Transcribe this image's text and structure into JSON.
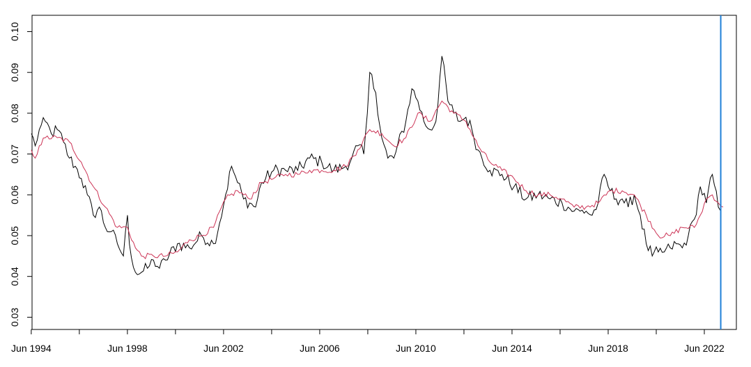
{
  "chart_data": {
    "type": "line",
    "title": "",
    "xlabel": "",
    "ylabel": "",
    "xlim": [
      1994.45,
      2023.75
    ],
    "ylim": [
      0.027,
      0.104
    ],
    "grid": false,
    "x_tick_labels": [
      "Jun 1994",
      "Jun 1998",
      "Jun 2002",
      "Jun 2006",
      "Jun 2010",
      "Jun 2014",
      "Jun 2018",
      "Jun 2022"
    ],
    "x_tick_positions": [
      1994.417,
      1996.417,
      1998.417,
      2000.417,
      2002.417,
      2004.417,
      2006.417,
      2008.417,
      2010.417,
      2012.417,
      2014.417,
      2016.417,
      2018.417,
      2020.417,
      2022.417
    ],
    "x_labeled_ticks": [
      1994.417,
      1998.417,
      2002.417,
      2006.417,
      2010.417,
      2014.417,
      2018.417,
      2022.417
    ],
    "y_ticks": [
      0.03,
      0.04,
      0.05,
      0.06,
      0.07,
      0.08,
      0.09,
      0.1
    ],
    "y_tick_labels": [
      "0.03",
      "0.04",
      "0.05",
      "0.06",
      "0.07",
      "0.08",
      "0.09",
      "0.10"
    ],
    "vertical_line": {
      "x": 2023.1,
      "color": "#1e7fd8"
    },
    "series": [
      {
        "color": "#000000",
        "x": [
          1994.42,
          1994.58,
          1994.75,
          1995.0,
          1995.25,
          1995.5,
          1995.75,
          1996.0,
          1996.25,
          1996.5,
          1996.75,
          1997.0,
          1997.25,
          1997.5,
          1997.75,
          1998.0,
          1998.25,
          1998.42,
          1998.5,
          1998.75,
          1999.0,
          1999.25,
          1999.5,
          1999.75,
          2000.0,
          2000.5,
          2001.0,
          2001.5,
          2002.0,
          2002.25,
          2002.5,
          2002.75,
          2003.0,
          2003.25,
          2003.5,
          2003.75,
          2004.0,
          2004.5,
          2005.0,
          2005.5,
          2006.0,
          2006.5,
          2007.0,
          2007.5,
          2007.75,
          2008.0,
          2008.25,
          2008.4,
          2008.5,
          2008.75,
          2009.0,
          2009.25,
          2009.5,
          2010.0,
          2010.25,
          2010.5,
          2010.75,
          2011.0,
          2011.25,
          2011.5,
          2011.75,
          2012.0,
          2012.25,
          2012.5,
          2012.75,
          2013.0,
          2013.5,
          2014.0,
          2014.5,
          2015.0,
          2015.5,
          2016.0,
          2016.5,
          2017.0,
          2017.25,
          2017.5,
          2017.75,
          2018.0,
          2018.25,
          2018.5,
          2018.75,
          2019.0,
          2019.25,
          2019.5,
          2019.75,
          2020.0,
          2020.25,
          2020.5,
          2020.75,
          2021.0,
          2021.25,
          2021.5,
          2021.75,
          2022.0,
          2022.25,
          2022.5,
          2022.75,
          2023.0,
          2023.1
        ],
        "y": [
          0.075,
          0.072,
          0.076,
          0.078,
          0.075,
          0.076,
          0.073,
          0.069,
          0.067,
          0.064,
          0.06,
          0.055,
          0.057,
          0.052,
          0.051,
          0.048,
          0.045,
          0.055,
          0.048,
          0.041,
          0.041,
          0.042,
          0.044,
          0.042,
          0.044,
          0.048,
          0.047,
          0.05,
          0.048,
          0.053,
          0.06,
          0.067,
          0.063,
          0.059,
          0.058,
          0.057,
          0.063,
          0.066,
          0.066,
          0.066,
          0.069,
          0.068,
          0.066,
          0.067,
          0.069,
          0.072,
          0.07,
          0.08,
          0.09,
          0.085,
          0.074,
          0.069,
          0.069,
          0.078,
          0.086,
          0.083,
          0.078,
          0.076,
          0.078,
          0.094,
          0.083,
          0.08,
          0.078,
          0.079,
          0.076,
          0.071,
          0.066,
          0.065,
          0.062,
          0.059,
          0.06,
          0.059,
          0.058,
          0.056,
          0.056,
          0.056,
          0.055,
          0.058,
          0.065,
          0.061,
          0.059,
          0.059,
          0.057,
          0.06,
          0.055,
          0.048,
          0.045,
          0.046,
          0.046,
          0.047,
          0.048,
          0.047,
          0.05,
          0.054,
          0.062,
          0.058,
          0.065,
          0.057,
          0.056
        ]
      },
      {
        "color": "#cc3355",
        "x": [
          1994.42,
          1994.58,
          1994.75,
          1995.0,
          1995.5,
          1996.0,
          1996.5,
          1997.0,
          1997.5,
          1998.0,
          1998.42,
          1998.75,
          1999.0,
          1999.5,
          2000.0,
          2000.5,
          2001.0,
          2001.5,
          2002.0,
          2002.5,
          2003.0,
          2003.5,
          2004.0,
          2004.5,
          2005.0,
          2005.5,
          2006.0,
          2006.5,
          2007.0,
          2007.5,
          2008.0,
          2008.5,
          2009.0,
          2009.5,
          2010.0,
          2010.5,
          2011.0,
          2011.5,
          2012.0,
          2012.5,
          2013.0,
          2013.5,
          2014.0,
          2014.5,
          2015.0,
          2015.5,
          2016.0,
          2016.5,
          2017.0,
          2017.5,
          2018.0,
          2018.5,
          2019.0,
          2019.5,
          2020.0,
          2020.5,
          2021.0,
          2021.5,
          2022.0,
          2022.25,
          2022.5,
          2022.75,
          2023.0,
          2023.2
        ],
        "y": [
          0.071,
          0.069,
          0.072,
          0.074,
          0.074,
          0.073,
          0.068,
          0.062,
          0.057,
          0.052,
          0.052,
          0.047,
          0.045,
          0.045,
          0.045,
          0.046,
          0.049,
          0.05,
          0.052,
          0.059,
          0.061,
          0.059,
          0.063,
          0.064,
          0.065,
          0.065,
          0.066,
          0.066,
          0.066,
          0.067,
          0.071,
          0.076,
          0.075,
          0.072,
          0.074,
          0.08,
          0.078,
          0.083,
          0.08,
          0.078,
          0.072,
          0.068,
          0.066,
          0.064,
          0.061,
          0.06,
          0.06,
          0.059,
          0.057,
          0.057,
          0.058,
          0.061,
          0.061,
          0.06,
          0.055,
          0.05,
          0.05,
          0.052,
          0.052,
          0.055,
          0.059,
          0.06,
          0.058,
          0.057
        ]
      }
    ]
  }
}
